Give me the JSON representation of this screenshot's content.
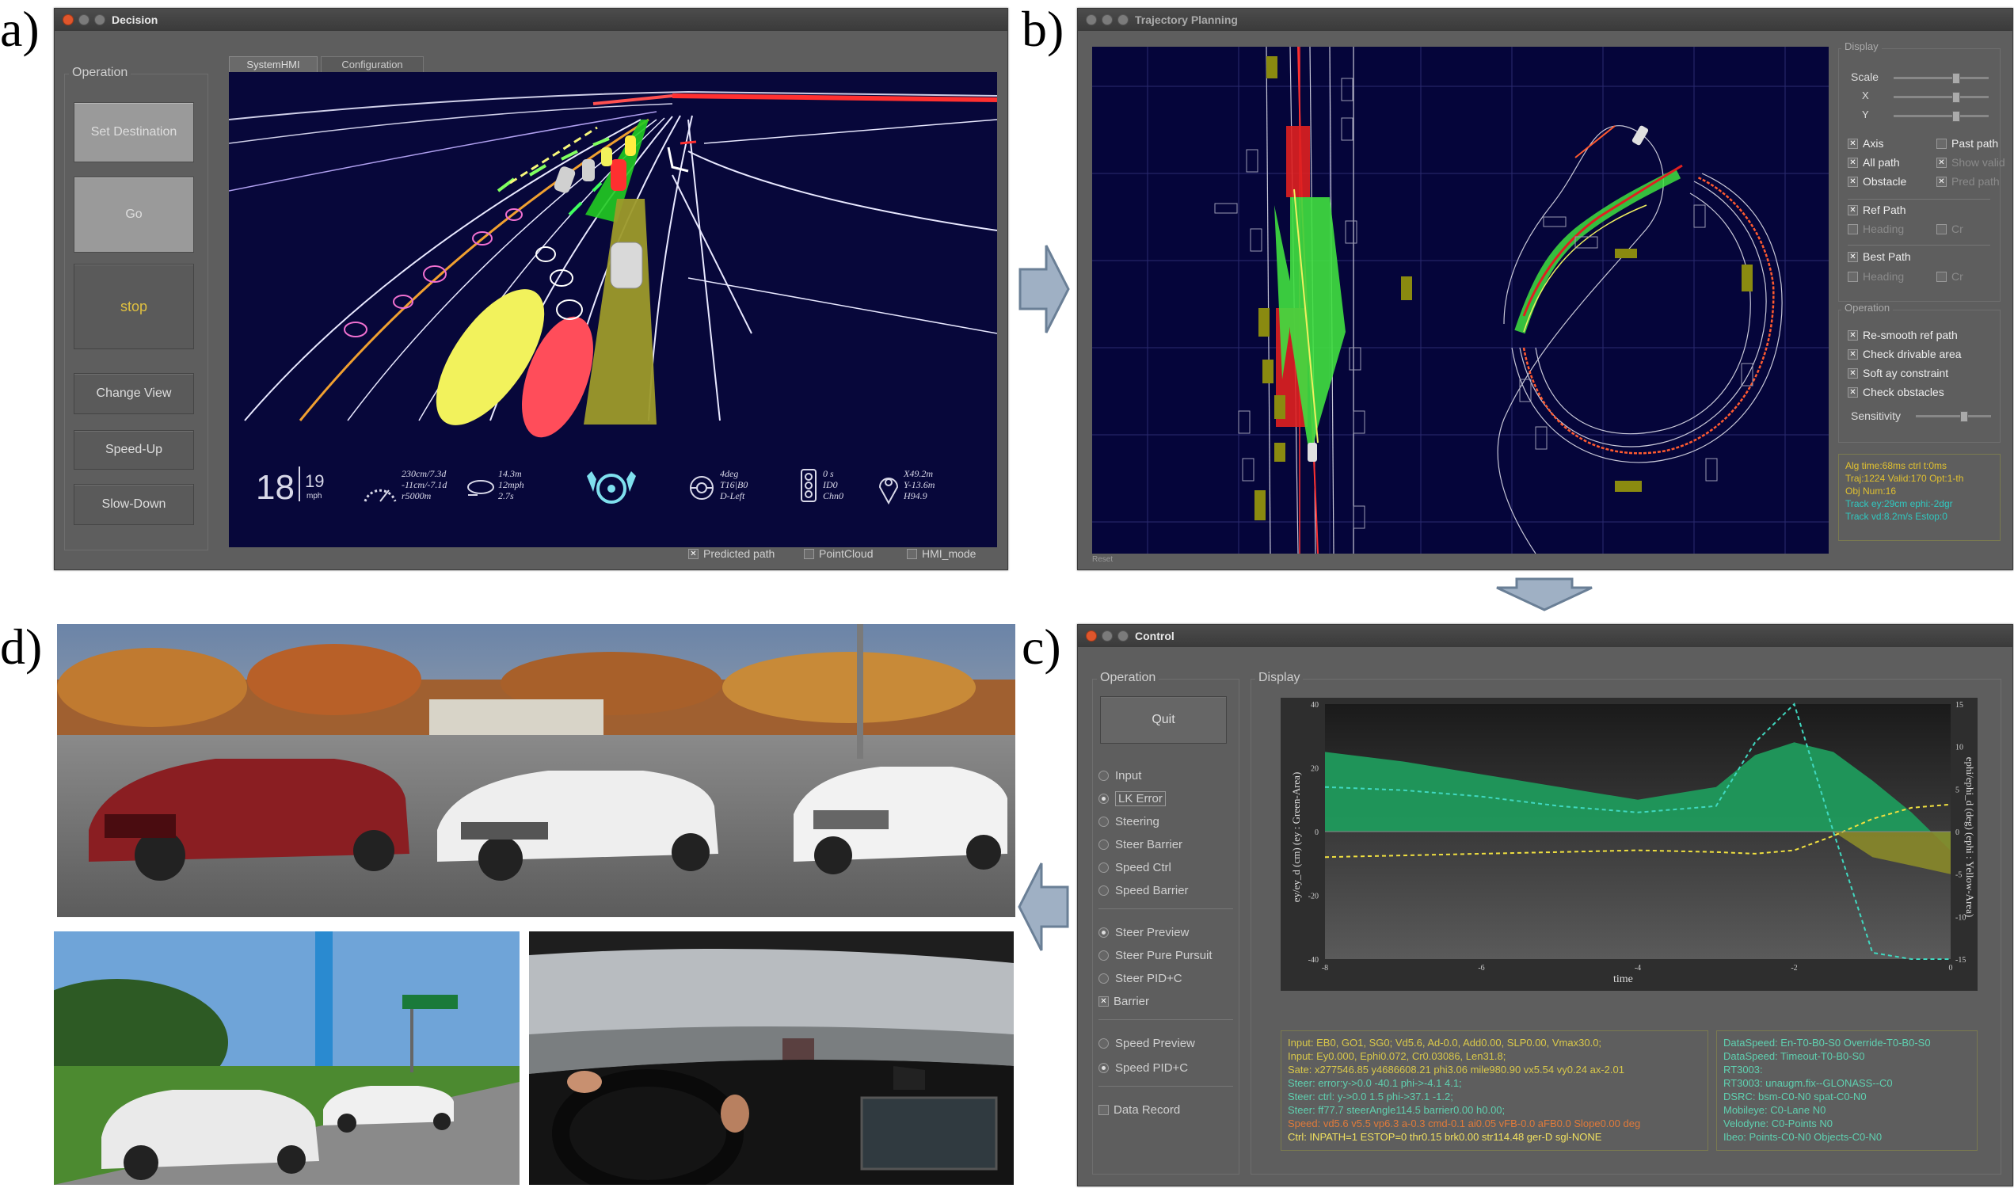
{
  "labels": {
    "a": "a)",
    "b": "b)",
    "c": "c)",
    "d": "d)"
  },
  "decision": {
    "title": "Decision",
    "operation_title": "Operation",
    "buttons": {
      "set_destination": "Set Destination",
      "go": "Go",
      "stop": "stop",
      "change_view": "Change View",
      "speed_up": "Speed-Up",
      "slow_down": "Slow-Down"
    },
    "tabs": [
      "SystemHMI",
      "Configuration"
    ],
    "hmi": {
      "speed_big": "18",
      "speed_small": "19",
      "speed_unit": "mph",
      "range_l1": "230cm/7.3d",
      "range_l2": "-11cm/-7.1d",
      "range_l3": "r5000m",
      "dist_l1": "14.3m",
      "dist_l2": "12mph",
      "dist_l3": "2.7s",
      "steer_l1": "4deg",
      "steer_l2": "T16|B0",
      "steer_l3": "D-Left",
      "light_l1": "0 s",
      "light_l2": "ID0",
      "light_l3": "Chn0",
      "pos_l1": "X49.2m",
      "pos_l2": "Y-13.6m",
      "pos_l3": "H94.9"
    },
    "checkboxes": [
      {
        "label": "Predicted path",
        "checked": true
      },
      {
        "label": "PointCloud",
        "checked": false
      },
      {
        "label": "HMI_mode",
        "checked": false
      }
    ]
  },
  "trajectory": {
    "title": "Trajectory Planning",
    "display_title": "Display",
    "scale_label": "Scale",
    "x_label": "X",
    "y_label": "Y",
    "display_checks": [
      {
        "label": "Axis",
        "checked": true,
        "enabled": true
      },
      {
        "label": "Past path",
        "checked": false,
        "enabled": true
      },
      {
        "label": "All path",
        "checked": true,
        "enabled": true
      },
      {
        "label": "Show valid",
        "checked": true,
        "enabled": false
      },
      {
        "label": "Obstacle",
        "checked": true,
        "enabled": true
      },
      {
        "label": "Pred path",
        "checked": true,
        "enabled": false
      }
    ],
    "ref_path": "Ref Path",
    "heading1": "Heading",
    "cr1": "Cr",
    "best_path": "Best Path",
    "heading2": "Heading",
    "cr2": "Cr",
    "operation_title": "Operation",
    "op_checks": [
      "Re-smooth ref path",
      "Check drivable area",
      "Soft ay constraint",
      "Check obstacles"
    ],
    "sensitivity": "Sensitivity",
    "status_yellow": [
      "Alg time:68ms   ctrl t:0ms",
      "Traj:1224   Valid:170   Opt:1-th",
      "Obj Num:16"
    ],
    "status_cyan": [
      "Track ey:29cm   ephi:-2dgr",
      "Track vd:8.2m/s   Estop:0"
    ],
    "footer": "Reset"
  },
  "control": {
    "title": "Control",
    "operation_title": "Operation",
    "display_title": "Display",
    "quit": "Quit",
    "radios_a": [
      {
        "label": "Input",
        "on": false
      },
      {
        "label": "LK Error",
        "on": true
      },
      {
        "label": "Steering",
        "on": false
      },
      {
        "label": "Steer Barrier",
        "on": false
      },
      {
        "label": "Speed  Ctrl",
        "on": false
      },
      {
        "label": "Speed Barrier",
        "on": false
      }
    ],
    "radios_b": [
      {
        "label": "Steer Preview",
        "on": true
      },
      {
        "label": "Steer Pure Pursuit",
        "on": false
      },
      {
        "label": "Steer PID+C",
        "on": false
      }
    ],
    "barrier": "Barrier",
    "radios_c": [
      {
        "label": "Speed Preview",
        "on": false
      },
      {
        "label": "Speed PID+C",
        "on": true
      }
    ],
    "data_record": "Data Record",
    "log_left": [
      {
        "text": "Input: EB0, GO1, SG0;   Vd5.6, Ad-0.0, Add0.00, SLP0.00, Vmax30.0;",
        "color": "#d9c84a"
      },
      {
        "text": "Input: Ey0.000, Ephi0.072, Cr0.03086, Len31.8;",
        "color": "#d9c84a"
      },
      {
        "text": "Sate: x277546.85 y4686608.21 phi3.06 mile980.90 vx5.54 vy0.24 ax-2.01",
        "color": "#d9c84a"
      },
      {
        "text": "Steer: error:y->0.0 -40.1 phi->-4.1  4.1;",
        "color": "#5fd0b0"
      },
      {
        "text": "Steer: ctrl: y->0.0  1.5 phi->37.1 -1.2;",
        "color": "#5fd0b0"
      },
      {
        "text": "Steer: ff77.7 steerAngle114.5 barrier0.00 h0.00;",
        "color": "#5fd0b0"
      },
      {
        "text": "Speed: vd5.6 v5.5 vp6.3 a-0.3  cmd-0.1   ai0.05 vFB-0.0 aFB0.0 Slope0.00 deg",
        "color": "#e07a3a"
      },
      {
        "text": "Ctrl: INPATH=1  ESTOP=0   thr0.15 brk0.00 str114.48 ger-D sgl-NONE",
        "color": "#f0e060"
      }
    ],
    "log_right": [
      {
        "text": "DataSpeed: En-T0-B0-S0 Override-T0-B0-S0",
        "color": "#5fd0b0"
      },
      {
        "text": "DataSpeed: Timeout-T0-B0-S0",
        "color": "#5fd0b0"
      },
      {
        "text": "RT3003:",
        "color": "#5fd0b0"
      },
      {
        "text": "RT3003: unaugm.fix--GLONASS--C0",
        "color": "#5fd0b0"
      },
      {
        "text": "DSRC: bsm-C0-N0 spat-C0-N0",
        "color": "#5fd0b0"
      },
      {
        "text": "Mobileye: C0-Lane N0",
        "color": "#5fd0b0"
      },
      {
        "text": "Velodyne: C0-Points N0",
        "color": "#5fd0b0"
      },
      {
        "text": "Ibeo: Points-C0-N0  Objects-C0-N0",
        "color": "#5fd0b0"
      }
    ],
    "chart": {
      "ylabel_left": "ey/ey_d (cm)  (ey : Green-Area)",
      "ylabel_right": "ephi/ephi_d (deg)  (ephi : Yellow-Area)",
      "xlabel": "time",
      "left_ticks": [
        "40",
        "20",
        "0",
        "-20",
        "-40"
      ],
      "right_ticks": [
        "15",
        "10",
        "5",
        "0",
        "-5",
        "-10",
        "-15"
      ],
      "x_ticks": [
        "-8",
        "-6",
        "-4",
        "-2",
        "0"
      ]
    }
  },
  "chart_data": {
    "type": "area",
    "xlabel": "time",
    "ylabel": "ey/ey_d (cm)  (ey : Green-Area)",
    "y2label": "ephi/ephi_d (deg)  (ephi : Yellow-Area)",
    "xlim": [
      -8,
      0
    ],
    "ylim": [
      -40,
      40
    ],
    "y2lim": [
      -15,
      15
    ],
    "x": [
      -8,
      -7,
      -6,
      -5,
      -4,
      -3,
      -2.5,
      -2,
      -1.5,
      -1,
      -0.5,
      0
    ],
    "series": [
      {
        "name": "ey",
        "axis": "left",
        "style": "area",
        "values": [
          25,
          22,
          18,
          14,
          10,
          14,
          24,
          28,
          25,
          16,
          6,
          -6
        ]
      },
      {
        "name": "ephi",
        "axis": "right",
        "style": "area",
        "values": [
          0,
          0,
          0,
          0,
          0,
          0,
          0,
          0,
          0,
          -3,
          -4,
          -5
        ]
      },
      {
        "name": "ey_d",
        "axis": "left",
        "style": "dashed",
        "values": [
          14,
          13,
          11,
          8,
          6,
          8,
          28,
          40,
          0,
          -38,
          -40,
          -40
        ]
      },
      {
        "name": "ephi_d",
        "axis": "right",
        "style": "dashed",
        "values": [
          -3,
          -2.8,
          -2.6,
          -2.4,
          -2.2,
          -2.4,
          -2.6,
          -2.2,
          -0.5,
          1.5,
          2.8,
          3.2
        ]
      }
    ]
  }
}
